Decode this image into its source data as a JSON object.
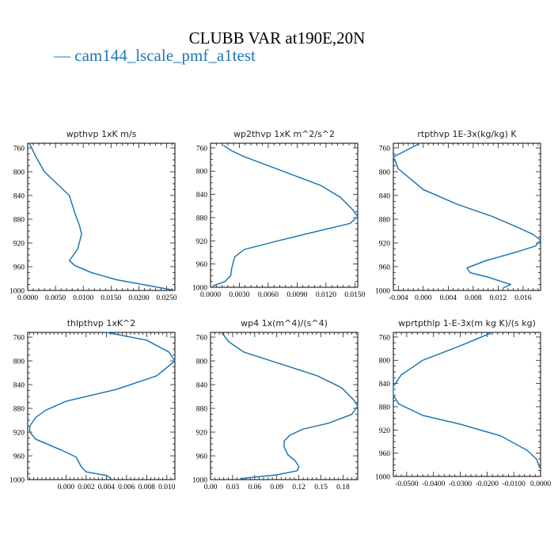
{
  "figure": {
    "title": "CLUBB VAR at190E,20N",
    "legend": {
      "marker": "—",
      "label": "cam144_lscale_pmf_a1test",
      "color": "#1f77b4"
    }
  },
  "chart_data": [
    {
      "type": "line",
      "title": "wpthvp  1xK m/s",
      "xlim": [
        0,
        0.0265
      ],
      "ylim": [
        1000,
        752
      ],
      "xticks": [
        0,
        0.005,
        0.01,
        0.015,
        0.02,
        0.025
      ],
      "xtick_labels": [
        "0.0000",
        "0.0050",
        "0.0100",
        "0.0150",
        "0.0200",
        "0.0250"
      ],
      "yticks": [
        760,
        800,
        840,
        880,
        920,
        960,
        1000
      ],
      "ytick_labels": [
        "760",
        "800",
        "840",
        "880",
        "920",
        "960",
        "1000"
      ],
      "series": [
        {
          "x": [
            0.0003,
            0.0015,
            0.003,
            0.0075,
            0.0085,
            0.0093,
            0.0097,
            0.009,
            0.0075,
            0.0085,
            0.0115,
            0.016,
            0.026
          ],
          "y": [
            752,
            775,
            800,
            840,
            870,
            890,
            905,
            930,
            950,
            958,
            970,
            982,
            999
          ]
        }
      ]
    },
    {
      "type": "line",
      "title": "wp2thvp  1xK m^2/s^2",
      "xlim": [
        0,
        0.0153
      ],
      "ylim": [
        1000,
        752
      ],
      "xticks": [
        0,
        0.003,
        0.006,
        0.009,
        0.012,
        0.015
      ],
      "xtick_labels": [
        "0.0000",
        "0.0030",
        "0.0060",
        "0.0090",
        "0.0120",
        "0.0150"
      ],
      "yticks": [
        760,
        800,
        840,
        880,
        920,
        960,
        1000
      ],
      "ytick_labels": [
        "760",
        "800",
        "840",
        "880",
        "920",
        "960",
        "1000"
      ],
      "series": [
        {
          "x": [
            0.0013,
            0.0022,
            0.0035,
            0.0075,
            0.0115,
            0.0135,
            0.0147,
            0.0153,
            0.0145,
            0.011,
            0.007,
            0.0035,
            0.0025,
            0.0022,
            0.0021,
            0.0015,
            0.0002
          ],
          "y": [
            755,
            765,
            775,
            800,
            825,
            845,
            865,
            878,
            890,
            904,
            920,
            935,
            948,
            968,
            980,
            990,
            998
          ]
        }
      ]
    },
    {
      "type": "line",
      "title": "rtpthvp  1E-3x(kg/kg) K",
      "xlim": [
        -0.0048,
        0.0188
      ],
      "ylim": [
        1000,
        752
      ],
      "xticks": [
        -0.004,
        0,
        0.004,
        0.008,
        0.012,
        0.016
      ],
      "xtick_labels": [
        "-0.004",
        "0.000",
        "0.004",
        "0.008",
        "0.012",
        "0.016"
      ],
      "yticks": [
        760,
        800,
        840,
        880,
        920,
        960,
        1000
      ],
      "ytick_labels": [
        "760",
        "800",
        "840",
        "880",
        "920",
        "960",
        "1000"
      ],
      "series": [
        {
          "x": [
            -0.0005,
            -0.0048,
            -0.004,
            0.0,
            0.0055,
            0.011,
            0.015,
            0.0175,
            0.0188,
            0.018,
            0.015,
            0.01,
            0.007,
            0.0075,
            0.0105,
            0.014,
            0.0128
          ],
          "y": [
            752,
            775,
            795,
            830,
            855,
            875,
            893,
            905,
            915,
            925,
            935,
            950,
            962,
            970,
            978,
            990,
            996
          ]
        }
      ]
    },
    {
      "type": "line",
      "title": "thlpthvp  1xK^2",
      "xlim": [
        -0.0038,
        0.0108
      ],
      "ylim": [
        1000,
        752
      ],
      "xticks": [
        0,
        0.002,
        0.004,
        0.006,
        0.008,
        0.01
      ],
      "xtick_labels": [
        "0.000",
        "0.002",
        "0.004",
        "0.006",
        "0.008",
        "0.010"
      ],
      "yticks": [
        760,
        800,
        840,
        880,
        920,
        960,
        1000
      ],
      "ytick_labels": [
        "760",
        "800",
        "840",
        "880",
        "920",
        "960",
        "1000"
      ],
      "series": [
        {
          "x": [
            0.004,
            0.008,
            0.0102,
            0.0108,
            0.009,
            0.005,
            0.0,
            -0.002,
            -0.003,
            -0.0036,
            -0.0036,
            -0.003,
            -0.0005,
            0.001,
            0.0015,
            0.002,
            0.004,
            0.0045
          ],
          "y": [
            752,
            765,
            785,
            800,
            825,
            848,
            868,
            883,
            895,
            910,
            920,
            932,
            950,
            962,
            978,
            987,
            993,
            998
          ]
        }
      ]
    },
    {
      "type": "line",
      "title": "wp4  1x(m^4)/(s^4)",
      "xlim": [
        0,
        0.2
      ],
      "ylim": [
        1000,
        752
      ],
      "xticks": [
        0,
        0.03,
        0.06,
        0.09,
        0.12,
        0.15,
        0.18
      ],
      "xtick_labels": [
        "0.00",
        "0.03",
        "0.06",
        "0.09",
        "0.12",
        "0.15",
        "0.18"
      ],
      "yticks": [
        760,
        800,
        840,
        880,
        920,
        960,
        1000
      ],
      "ytick_labels": [
        "760",
        "800",
        "840",
        "880",
        "920",
        "960",
        "1000"
      ],
      "series": [
        {
          "x": [
            0.015,
            0.025,
            0.045,
            0.095,
            0.145,
            0.178,
            0.194,
            0.2,
            0.192,
            0.16,
            0.125,
            0.108,
            0.1,
            0.1,
            0.105,
            0.115,
            0.12,
            0.118,
            0.09,
            0.05,
            0.04
          ],
          "y": [
            752,
            768,
            785,
            805,
            825,
            845,
            865,
            876,
            890,
            905,
            915,
            925,
            935,
            945,
            958,
            968,
            978,
            985,
            992,
            997,
            999
          ]
        }
      ]
    },
    {
      "type": "line",
      "title": "wprtpthlp  1-E-3x(m kg K)/(s kg)",
      "xlim": [
        -0.055,
        0
      ],
      "ylim": [
        1000,
        752
      ],
      "xticks": [
        -0.05,
        -0.04,
        -0.03,
        -0.02,
        -0.01,
        0
      ],
      "xtick_labels": [
        "-0.0500",
        "-0.0400",
        "-0.0300",
        "-0.0200",
        "-0.0100",
        "0.0000"
      ],
      "yticks": [
        760,
        800,
        840,
        880,
        920,
        960,
        1000
      ],
      "ytick_labels": [
        "760",
        "800",
        "840",
        "880",
        "920",
        "960",
        "1000"
      ],
      "series": [
        {
          "x": [
            -0.018,
            -0.03,
            -0.044,
            -0.052,
            -0.055,
            -0.055,
            -0.053,
            -0.044,
            -0.03,
            -0.015,
            -0.005,
            -0.0015,
            -0.0003
          ],
          "y": [
            752,
            775,
            800,
            825,
            845,
            860,
            875,
            895,
            910,
            930,
            955,
            970,
            985
          ]
        }
      ]
    }
  ]
}
